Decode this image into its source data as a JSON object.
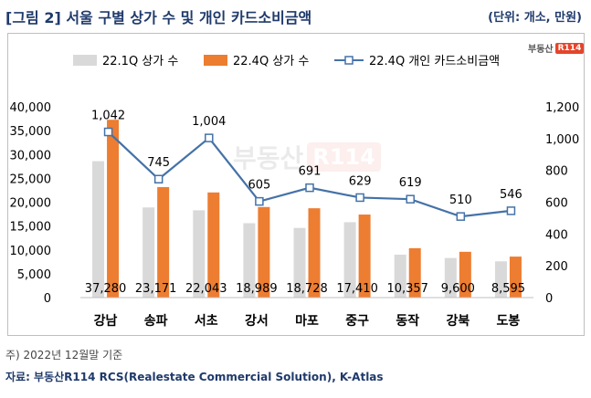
{
  "header": {
    "title": "[그림 2] 서울 구별 상가 수 및 개인 카드소비금액",
    "unit": "(단위: 개소, 만원)"
  },
  "logo": {
    "text": "부동산",
    "box": "R114"
  },
  "watermark": {
    "text": "부동산",
    "box": "R114"
  },
  "footer": {
    "note": "주) 2022년 12월말 기준",
    "source": "자료: 부동산R114 RCS(Realestate Commercial Solution), K-Atlas"
  },
  "colors": {
    "bar1": "#d9d9d9",
    "bar2": "#ed7d31",
    "line": "#4472a8",
    "marker_fill": "#ffffff"
  },
  "chart_data": {
    "type": "bar",
    "categories": [
      "강남",
      "송파",
      "서초",
      "강서",
      "마포",
      "중구",
      "동작",
      "강북",
      "도봉"
    ],
    "series": [
      {
        "name": "22.1Q 상가 수",
        "type": "bar",
        "axis": "left",
        "values": [
          28600,
          18900,
          18300,
          15600,
          14600,
          15800,
          9000,
          8300,
          7600
        ]
      },
      {
        "name": "22.4Q 상가 수",
        "type": "bar",
        "axis": "left",
        "values": [
          37280,
          23171,
          22043,
          18989,
          18728,
          17410,
          10357,
          9600,
          8595
        ]
      },
      {
        "name": "22.4Q 개인 카드소비금액",
        "type": "line",
        "axis": "right",
        "values": [
          1042,
          745,
          1004,
          605,
          691,
          629,
          619,
          510,
          546
        ]
      }
    ],
    "bar_labels": [
      "37,280",
      "23,171",
      "22,043",
      "18,989",
      "18,728",
      "17,410",
      "10,357",
      "9,600",
      "8,595"
    ],
    "line_labels": [
      "1,042",
      "745",
      "1,004",
      "605",
      "691",
      "629",
      "619",
      "510",
      "546"
    ],
    "y_left": {
      "min": 0,
      "max": 40000,
      "ticks": [
        "0",
        "5,000",
        "10,000",
        "15,000",
        "20,000",
        "25,000",
        "30,000",
        "35,000",
        "40,000"
      ]
    },
    "y_right": {
      "min": 0,
      "max": 1200,
      "ticks": [
        "0",
        "200",
        "400",
        "600",
        "800",
        "1,000",
        "1,200"
      ]
    },
    "legend_position": "top",
    "grid": false
  }
}
